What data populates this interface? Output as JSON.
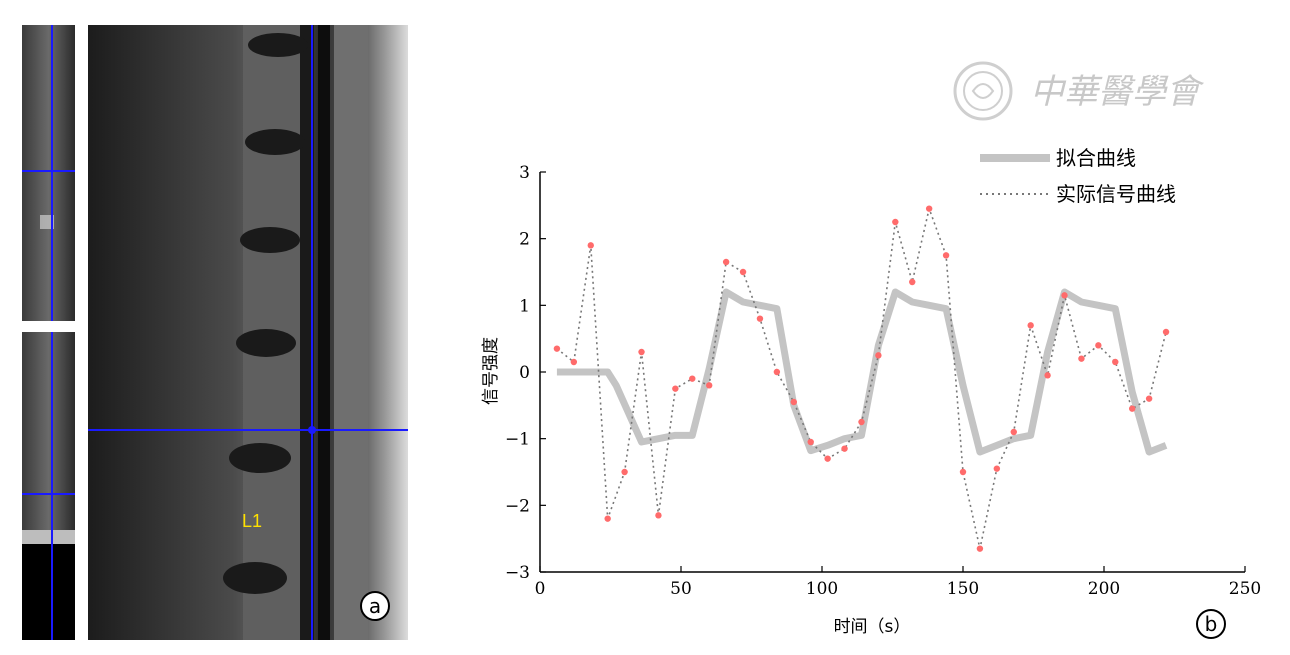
{
  "panel_a": {
    "label": "a",
    "vertebra_label": "L1",
    "crosshair_color": "#1a1aff",
    "label_color": "#ffe100"
  },
  "panel_b": {
    "label": "b"
  },
  "watermark": {
    "text": "中華醫學會"
  },
  "chart_data": {
    "type": "line",
    "xlabel": "时间（s）",
    "ylabel": "信号强度",
    "xlim": [
      0,
      250
    ],
    "ylim": [
      -3,
      3
    ],
    "xticks": [
      0,
      50,
      100,
      150,
      200,
      250
    ],
    "yticks": [
      -3,
      -2,
      -1,
      0,
      1,
      2,
      3
    ],
    "grid": false,
    "legend_position": "top-right",
    "series": [
      {
        "name": "拟合曲线",
        "style": "thick-solid",
        "color": "#c4c4c4",
        "x": [
          6,
          24,
          27,
          36,
          42,
          48,
          54,
          60,
          66,
          72,
          78,
          84,
          90,
          96,
          102,
          108,
          114,
          120,
          126,
          132,
          138,
          144,
          150,
          156,
          162,
          168,
          174,
          180,
          186,
          192,
          198,
          204,
          210,
          216,
          222
        ],
        "y": [
          0,
          0,
          -0.2,
          -1.05,
          -1.0,
          -0.95,
          -0.95,
          0.05,
          1.2,
          1.05,
          1.0,
          0.95,
          -0.5,
          -1.18,
          -1.1,
          -1.0,
          -0.95,
          0.4,
          1.2,
          1.05,
          1.0,
          0.95,
          -0.2,
          -1.2,
          -1.1,
          -1.0,
          -0.95,
          0.3,
          1.2,
          1.05,
          1.0,
          0.95,
          -0.3,
          -1.2,
          -1.1
        ]
      },
      {
        "name": "实际信号曲线",
        "style": "dotted",
        "color": "#777777",
        "marker_color": "#ff6b6b",
        "x": [
          6,
          12,
          18,
          24,
          30,
          36,
          42,
          48,
          54,
          60,
          66,
          72,
          78,
          84,
          90,
          96,
          102,
          108,
          114,
          120,
          126,
          132,
          138,
          144,
          150,
          156,
          162,
          168,
          174,
          180,
          186,
          192,
          198,
          204,
          210,
          216,
          222
        ],
        "y": [
          0.35,
          0.15,
          1.9,
          -2.2,
          -1.5,
          0.3,
          -2.15,
          -0.25,
          -0.1,
          -0.2,
          1.65,
          1.5,
          0.8,
          0.0,
          -0.45,
          -1.05,
          -1.3,
          -1.15,
          -0.75,
          0.25,
          2.25,
          1.35,
          2.45,
          1.75,
          -1.5,
          -2.65,
          -1.45,
          -0.9,
          0.7,
          -0.05,
          1.15,
          0.2,
          0.4,
          0.15,
          -0.55,
          -0.4,
          0.6
        ]
      }
    ]
  }
}
